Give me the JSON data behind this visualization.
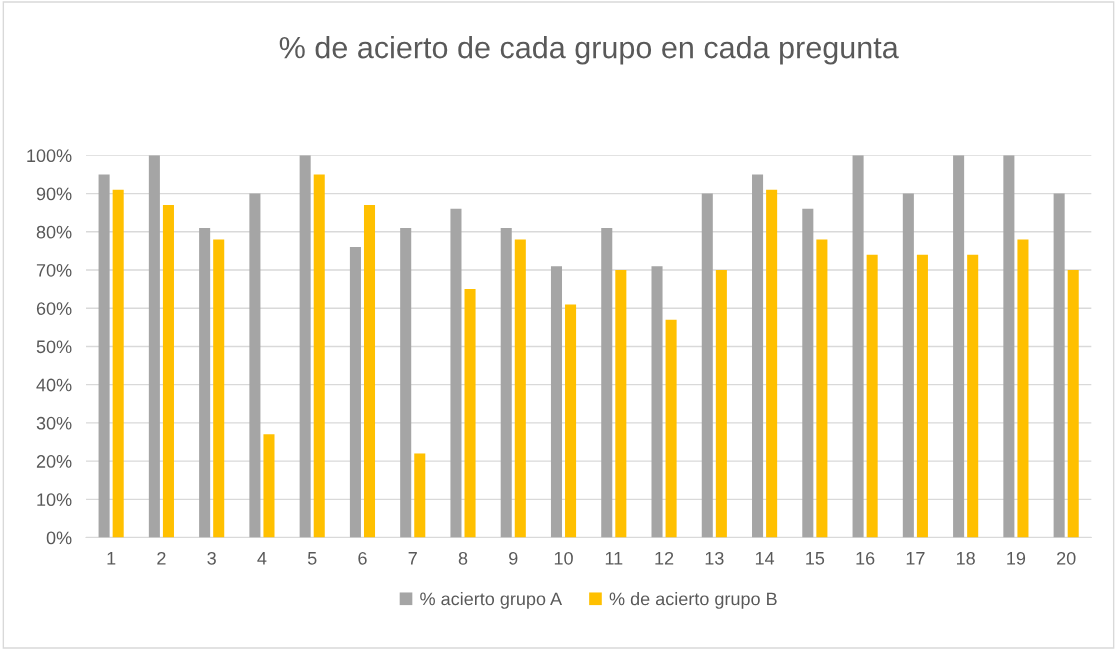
{
  "chart_data": {
    "type": "bar",
    "title": "% de acierto de cada grupo en cada pregunta",
    "categories": [
      "1",
      "2",
      "3",
      "4",
      "5",
      "6",
      "7",
      "8",
      "9",
      "10",
      "11",
      "12",
      "13",
      "14",
      "15",
      "16",
      "17",
      "18",
      "19",
      "20"
    ],
    "series": [
      {
        "name": "% acierto grupo A",
        "color": "#a5a5a5",
        "values": [
          95,
          100,
          81,
          90,
          100,
          76,
          81,
          86,
          81,
          71,
          81,
          71,
          90,
          95,
          86,
          100,
          90,
          100,
          100,
          90
        ]
      },
      {
        "name": "% de acierto grupo B",
        "color": "#ffc000",
        "values": [
          91,
          87,
          78,
          27,
          95,
          87,
          22,
          65,
          78,
          61,
          70,
          57,
          70,
          91,
          78,
          74,
          74,
          74,
          78,
          70
        ]
      }
    ],
    "ylim": [
      0,
      100
    ],
    "yticks": [
      {
        "value": 0,
        "label": "0%"
      },
      {
        "value": 10,
        "label": "10%"
      },
      {
        "value": 20,
        "label": "20%"
      },
      {
        "value": 30,
        "label": "30%"
      },
      {
        "value": 40,
        "label": "40%"
      },
      {
        "value": 50,
        "label": "50%"
      },
      {
        "value": 60,
        "label": "60%"
      },
      {
        "value": 70,
        "label": "70%"
      },
      {
        "value": 80,
        "label": "80%"
      },
      {
        "value": 90,
        "label": "90%"
      },
      {
        "value": 100,
        "label": "100%"
      }
    ],
    "grid": "y",
    "legend": "bottom"
  }
}
